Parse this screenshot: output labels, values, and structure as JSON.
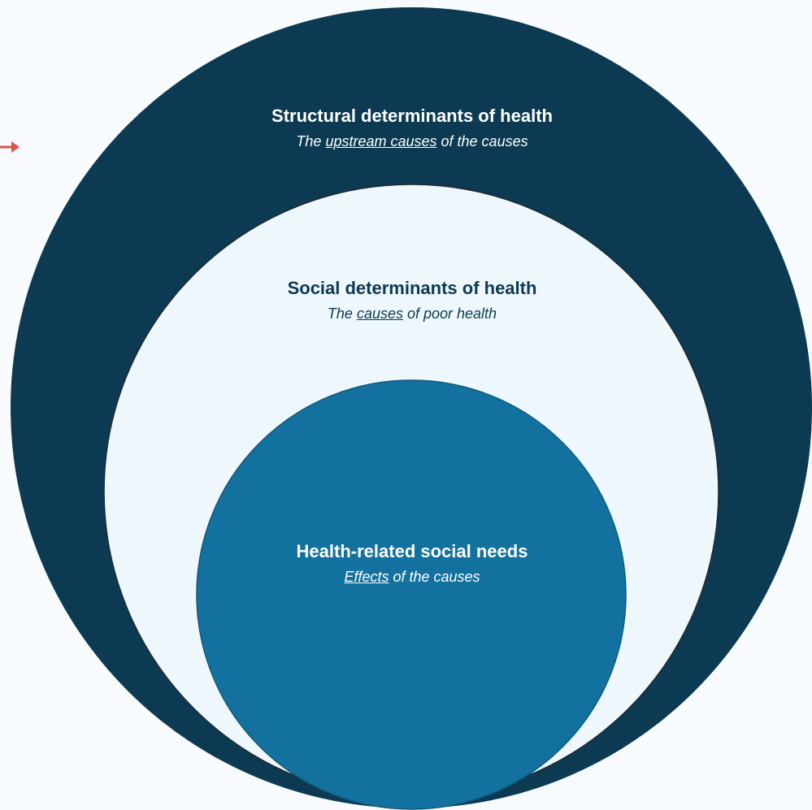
{
  "colors": {
    "background": "#f7fbfd",
    "outer_circle": "#0b3a52",
    "middle_circle": "#eef7fb",
    "inner_circle": "#12719e",
    "arrow": "#d9534f"
  },
  "levels": {
    "structural": {
      "title": "Structural determinants of health",
      "subtitle_prefix": "The ",
      "subtitle_emphasis": "upstream causes",
      "subtitle_suffix": " of the causes"
    },
    "social": {
      "title": "Social determinants of health",
      "subtitle_prefix": "The ",
      "subtitle_emphasis": "causes",
      "subtitle_suffix": " of poor health"
    },
    "needs": {
      "title": "Health-related social needs",
      "subtitle_prefix": "",
      "subtitle_emphasis": "Effects",
      "subtitle_suffix": " of the causes"
    }
  }
}
